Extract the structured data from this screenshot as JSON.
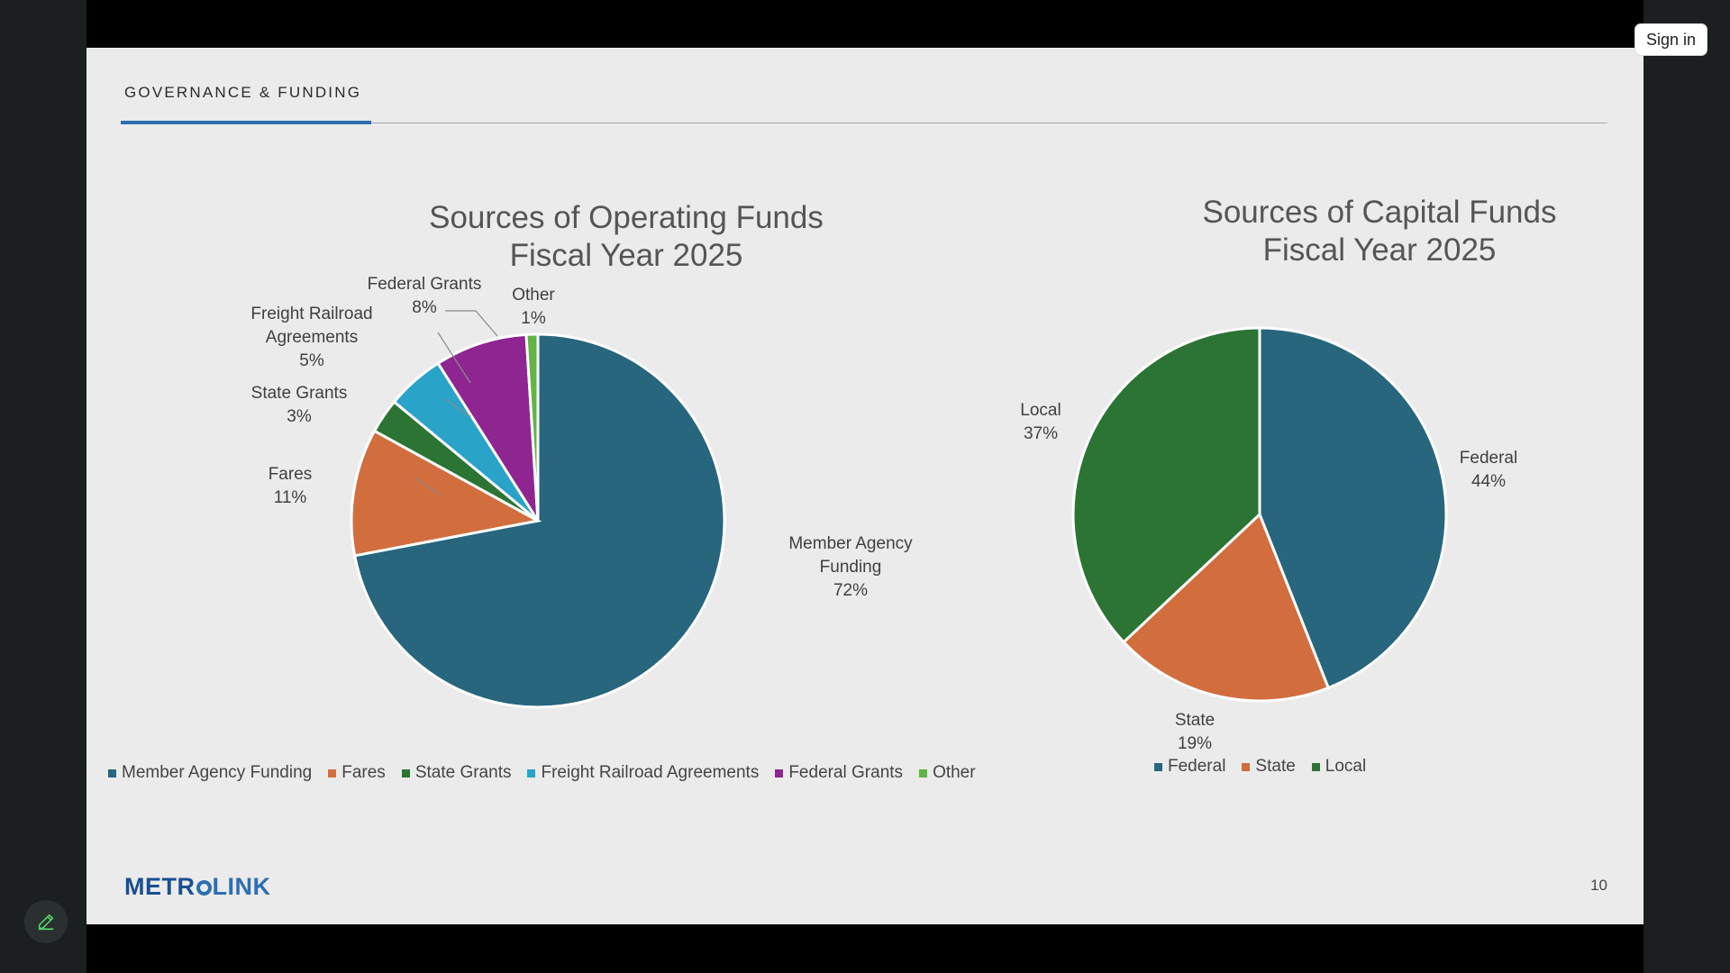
{
  "window": {
    "sign_in_label": "Sign in",
    "edit_button_icon": "pencil-icon"
  },
  "slide": {
    "section_title": "GOVERNANCE & FUNDING",
    "logo_text_a": "METR",
    "logo_text_b": "LINK",
    "page_number": "10",
    "accent_color": "#2d6fb1"
  },
  "charts": {
    "operating": {
      "title_line1": "Sources of Operating Funds",
      "title_line2": "Fiscal Year 2025"
    },
    "capital": {
      "title_line1": "Sources of Capital Funds",
      "title_line2": "Fiscal Year 2025"
    }
  },
  "chart_data": [
    {
      "type": "pie",
      "title": "Sources of Operating Funds Fiscal Year 2025",
      "legend_position": "bottom",
      "categories": [
        "Member Agency Funding",
        "Fares",
        "State Grants",
        "Freight Railroad Agreements",
        "Federal Grants",
        "Other"
      ],
      "values": [
        72,
        11,
        3,
        5,
        8,
        1
      ],
      "data_labels": [
        "72%",
        "11%",
        "3%",
        "5%",
        "8%",
        "1%"
      ],
      "colors": [
        "#27667d",
        "#d26d3e",
        "#2b7434",
        "#2aa3c9",
        "#8f2590",
        "#62b445"
      ]
    },
    {
      "type": "pie",
      "title": "Sources of Capital Funds Fiscal Year 2025",
      "legend_position": "bottom",
      "categories": [
        "Federal",
        "State",
        "Local"
      ],
      "values": [
        44,
        19,
        37
      ],
      "data_labels": [
        "44%",
        "19%",
        "37%"
      ],
      "colors": [
        "#27667d",
        "#d26d3e",
        "#2b7434"
      ]
    }
  ]
}
